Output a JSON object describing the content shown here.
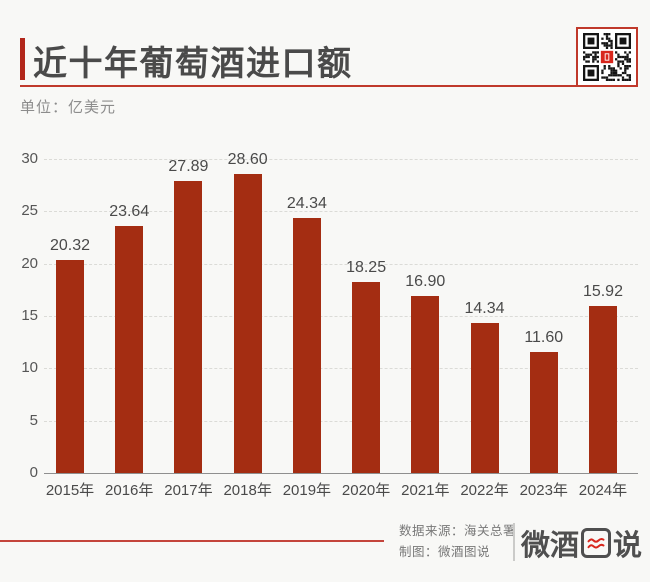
{
  "page": {
    "background": "#F8F8F6"
  },
  "header": {
    "title": "近十年葡萄酒进口额",
    "accent_color": "#B2271B",
    "underline_color": "#C0392B"
  },
  "unit_label": "单位：亿美元",
  "chart_data": {
    "type": "bar",
    "title": "近十年葡萄酒进口额",
    "unit": "亿美元",
    "categories": [
      "2015年",
      "2016年",
      "2017年",
      "2018年",
      "2019年",
      "2020年",
      "2021年",
      "2022年",
      "2023年",
      "2024年"
    ],
    "values": [
      20.32,
      23.64,
      27.89,
      28.6,
      24.34,
      18.25,
      16.9,
      14.34,
      11.6,
      15.92
    ],
    "value_labels": [
      "20.32",
      "23.64",
      "27.89",
      "28.60",
      "24.34",
      "18.25",
      "16.90",
      "14.34",
      "11.60",
      "15.92"
    ],
    "ylim": [
      0,
      30
    ],
    "yticks": [
      0,
      5,
      10,
      15,
      20,
      25,
      30
    ],
    "grid": "horizontal-dashed",
    "legend": "none",
    "bar_color": "#A42D12"
  },
  "qr": {
    "name": "wechat-qr-code",
    "center_color": "#D8261C",
    "frame_color": "#C0392B"
  },
  "footer": {
    "source": "数据来源：海关总署",
    "credit": "制图：微酒图说",
    "logo_text": "微酒图说",
    "logo_prefix": "微酒",
    "logo_suffix": "说",
    "logo_wave_color": "#D8261C"
  }
}
